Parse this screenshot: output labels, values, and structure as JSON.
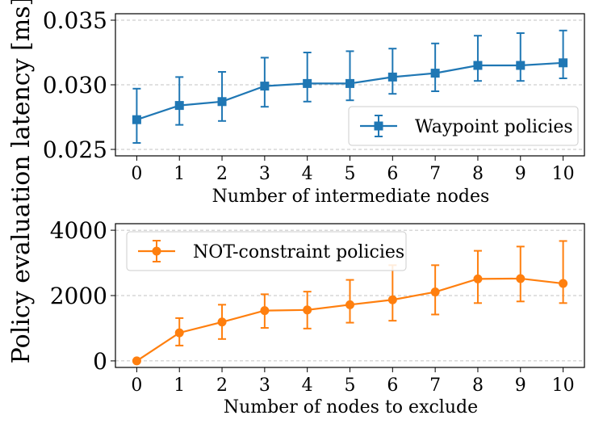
{
  "figure": {
    "shared_ylabel": "Policy evaluation latency [ms]"
  },
  "chart_data": [
    {
      "type": "line",
      "xlabel": "Number of intermediate nodes",
      "ylabel": "Policy evaluation latency [ms]",
      "x": [
        0,
        1,
        2,
        3,
        4,
        5,
        6,
        7,
        8,
        9,
        10
      ],
      "xlim": [
        -0.5,
        10.5
      ],
      "ylim": [
        0.0245,
        0.0355
      ],
      "y_ticks": [
        0.025,
        0.03,
        0.035
      ],
      "y_tick_labels": [
        "0.025",
        "0.030",
        "0.035"
      ],
      "grid": "horizontal-dashed",
      "legend_position": "lower-right",
      "series": [
        {
          "name": "Waypoint policies",
          "color": "#1f77b4",
          "marker": "square",
          "values": [
            0.0273,
            0.0284,
            0.0287,
            0.0299,
            0.0301,
            0.0301,
            0.0306,
            0.0309,
            0.0315,
            0.0315,
            0.0317
          ],
          "err_upper": [
            0.0297,
            0.0306,
            0.031,
            0.0321,
            0.0325,
            0.0326,
            0.0328,
            0.0332,
            0.0338,
            0.034,
            0.0342
          ],
          "err_lower": [
            0.0255,
            0.0269,
            0.0272,
            0.0283,
            0.0287,
            0.0288,
            0.0293,
            0.0295,
            0.0303,
            0.0303,
            0.0305
          ]
        }
      ]
    },
    {
      "type": "line",
      "xlabel": "Number of nodes to exclude",
      "ylabel": "Policy evaluation latency [ms]",
      "x": [
        0,
        1,
        2,
        3,
        4,
        5,
        6,
        7,
        8,
        9,
        10
      ],
      "xlim": [
        -0.5,
        10.5
      ],
      "ylim": [
        -200,
        4200
      ],
      "y_ticks": [
        0,
        2000,
        4000
      ],
      "y_tick_labels": [
        "0",
        "2000",
        "4000"
      ],
      "grid": "horizontal-dashed",
      "legend_position": "upper-left",
      "series": [
        {
          "name": "NOT-constraint policies",
          "color": "#ff7f0e",
          "marker": "circle",
          "values": [
            0,
            860,
            1190,
            1540,
            1560,
            1720,
            1870,
            2110,
            2510,
            2520,
            2370
          ],
          "err_upper": [
            0,
            1310,
            1720,
            2040,
            2120,
            2480,
            2930,
            2930,
            3370,
            3500,
            3670
          ],
          "err_lower": [
            0,
            470,
            670,
            1010,
            990,
            1170,
            1230,
            1420,
            1770,
            1820,
            1770
          ]
        }
      ]
    }
  ]
}
